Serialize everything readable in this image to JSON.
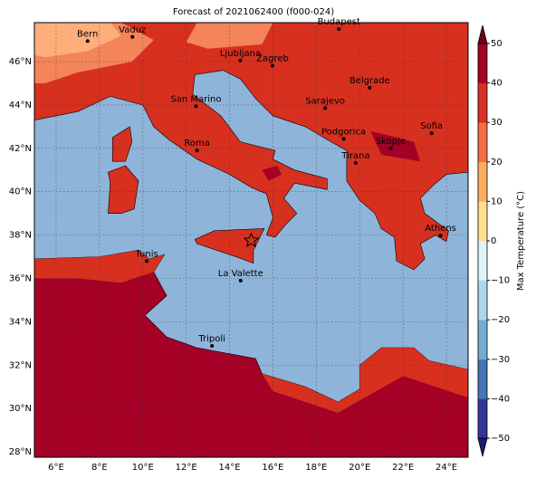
{
  "chart_data": {
    "type": "map",
    "title": "Forecast of 2021062400 (f000-024)",
    "xlim": [
      5,
      25
    ],
    "ylim": [
      27.75,
      47.8
    ],
    "xticks": [
      {
        "value": 6,
        "label": "6°E"
      },
      {
        "value": 8,
        "label": "8°E"
      },
      {
        "value": 10,
        "label": "10°E"
      },
      {
        "value": 12,
        "label": "12°E"
      },
      {
        "value": 14,
        "label": "14°E"
      },
      {
        "value": 16,
        "label": "16°E"
      },
      {
        "value": 18,
        "label": "18°E"
      },
      {
        "value": 20,
        "label": "20°E"
      },
      {
        "value": 22,
        "label": "22°E"
      },
      {
        "value": 24,
        "label": "24°E"
      }
    ],
    "yticks": [
      {
        "value": 28,
        "label": "28°N"
      },
      {
        "value": 30,
        "label": "30°N"
      },
      {
        "value": 32,
        "label": "32°N"
      },
      {
        "value": 34,
        "label": "34°N"
      },
      {
        "value": 36,
        "label": "36°N"
      },
      {
        "value": 38,
        "label": "38°N"
      },
      {
        "value": 40,
        "label": "40°N"
      },
      {
        "value": 42,
        "label": "42°N"
      },
      {
        "value": 44,
        "label": "44°N"
      },
      {
        "value": 46,
        "label": "46°N"
      }
    ],
    "grid": true,
    "cities": [
      "Bern",
      "Vaduz",
      "Budapest",
      "Ljubljana",
      "Zagreb",
      "Belgrade",
      "San Marino",
      "Sarajevo",
      "Sofia",
      "Podgorica",
      "Skopje",
      "Roma",
      "Tirana",
      "Athens",
      "Tunis",
      "La Valette",
      "Tripoli"
    ],
    "colorbar": {
      "label": "Max Temperature (°C)",
      "lim": [
        -50,
        50
      ],
      "ticks": [
        {
          "value": -50,
          "label": "−50"
        },
        {
          "value": -40,
          "label": "−40"
        },
        {
          "value": -30,
          "label": "−30"
        },
        {
          "value": -20,
          "label": "−20"
        },
        {
          "value": -10,
          "label": "−10"
        },
        0,
        10,
        20,
        30,
        40,
        50
      ],
      "colors": [
        "#313695",
        "#4575b4",
        "#74add1",
        "#abd9e9",
        "#e0f3f8",
        "#fee090",
        "#fdae61",
        "#f46d43",
        "#d73027",
        "#a50026"
      ],
      "under": "#1c1d70",
      "over": "#6b0020"
    }
  }
}
